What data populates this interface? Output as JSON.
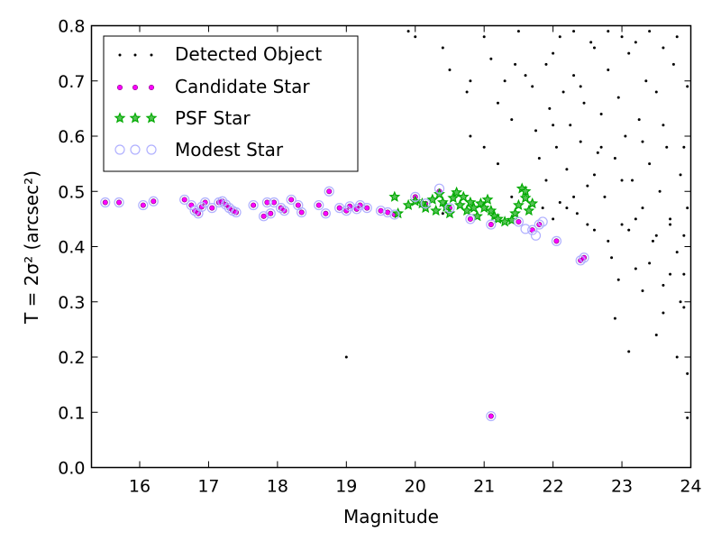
{
  "chart_data": {
    "type": "scatter",
    "xlabel": "Magnitude",
    "ylabel": "T = 2σ² (arcsec²)",
    "xlim": [
      15.3,
      24.0
    ],
    "ylim": [
      0.0,
      0.8
    ],
    "xticks": [
      "16",
      "17",
      "18",
      "19",
      "20",
      "21",
      "22",
      "23",
      "24"
    ],
    "yticks": [
      "0.0",
      "0.1",
      "0.2",
      "0.3",
      "0.4",
      "0.5",
      "0.6",
      "0.7",
      "0.8"
    ],
    "grid": false,
    "legend_position": "top-left",
    "colors": {
      "detected": "#000000",
      "candidate": "#ff00ff",
      "psf": "#00aa00",
      "modest": "#b0b0ff"
    },
    "series": [
      {
        "name": "Detected Object",
        "marker": "dot",
        "points": [
          [
            19.9,
            0.79
          ],
          [
            20.0,
            0.78
          ],
          [
            20.4,
            0.76
          ],
          [
            20.5,
            0.72
          ],
          [
            20.75,
            0.68
          ],
          [
            20.8,
            0.7
          ],
          [
            20.8,
            0.6
          ],
          [
            21.0,
            0.58
          ],
          [
            20.4,
            0.46
          ],
          [
            19.0,
            0.2
          ],
          [
            21.0,
            0.78
          ],
          [
            21.1,
            0.74
          ],
          [
            21.2,
            0.66
          ],
          [
            21.3,
            0.7
          ],
          [
            21.2,
            0.55
          ],
          [
            21.4,
            0.63
          ],
          [
            21.45,
            0.73
          ],
          [
            21.5,
            0.79
          ],
          [
            21.6,
            0.71
          ],
          [
            21.7,
            0.69
          ],
          [
            21.75,
            0.61
          ],
          [
            21.8,
            0.56
          ],
          [
            21.9,
            0.52
          ],
          [
            21.95,
            0.65
          ],
          [
            22.0,
            0.75
          ],
          [
            22.05,
            0.58
          ],
          [
            22.1,
            0.48
          ],
          [
            22.15,
            0.68
          ],
          [
            22.2,
            0.54
          ],
          [
            22.25,
            0.62
          ],
          [
            22.3,
            0.71
          ],
          [
            22.35,
            0.46
          ],
          [
            22.4,
            0.59
          ],
          [
            22.45,
            0.66
          ],
          [
            22.5,
            0.51
          ],
          [
            22.55,
            0.77
          ],
          [
            22.6,
            0.43
          ],
          [
            22.65,
            0.57
          ],
          [
            22.7,
            0.64
          ],
          [
            22.75,
            0.49
          ],
          [
            22.8,
            0.72
          ],
          [
            22.85,
            0.38
          ],
          [
            22.9,
            0.56
          ],
          [
            22.95,
            0.67
          ],
          [
            23.0,
            0.44
          ],
          [
            23.05,
            0.6
          ],
          [
            23.1,
            0.75
          ],
          [
            23.15,
            0.52
          ],
          [
            23.2,
            0.36
          ],
          [
            23.25,
            0.63
          ],
          [
            23.3,
            0.47
          ],
          [
            23.35,
            0.7
          ],
          [
            23.4,
            0.55
          ],
          [
            23.45,
            0.41
          ],
          [
            23.5,
            0.68
          ],
          [
            23.55,
            0.5
          ],
          [
            23.6,
            0.33
          ],
          [
            23.65,
            0.58
          ],
          [
            23.7,
            0.45
          ],
          [
            23.75,
            0.73
          ],
          [
            23.8,
            0.39
          ],
          [
            23.85,
            0.53
          ],
          [
            23.9,
            0.29
          ],
          [
            23.95,
            0.47
          ],
          [
            22.1,
            0.78
          ],
          [
            22.3,
            0.79
          ],
          [
            22.6,
            0.76
          ],
          [
            22.8,
            0.79
          ],
          [
            23.0,
            0.78
          ],
          [
            23.2,
            0.77
          ],
          [
            23.4,
            0.79
          ],
          [
            23.6,
            0.76
          ],
          [
            23.8,
            0.78
          ],
          [
            23.95,
            0.69
          ],
          [
            21.9,
            0.73
          ],
          [
            22.0,
            0.62
          ],
          [
            22.4,
            0.69
          ],
          [
            22.7,
            0.58
          ],
          [
            23.0,
            0.52
          ],
          [
            23.3,
            0.59
          ],
          [
            23.6,
            0.62
          ],
          [
            23.9,
            0.58
          ],
          [
            22.2,
            0.47
          ],
          [
            22.5,
            0.44
          ],
          [
            22.8,
            0.41
          ],
          [
            23.1,
            0.43
          ],
          [
            23.4,
            0.37
          ],
          [
            23.7,
            0.35
          ],
          [
            23.9,
            0.35
          ],
          [
            22.9,
            0.27
          ],
          [
            23.1,
            0.21
          ],
          [
            23.5,
            0.24
          ],
          [
            23.8,
            0.2
          ],
          [
            23.95,
            0.17
          ],
          [
            23.95,
            0.09
          ],
          [
            22.3,
            0.49
          ],
          [
            22.6,
            0.53
          ],
          [
            23.2,
            0.45
          ],
          [
            23.5,
            0.42
          ],
          [
            23.7,
            0.44
          ],
          [
            21.6,
            0.5
          ],
          [
            21.7,
            0.48
          ],
          [
            21.85,
            0.47
          ],
          [
            22.0,
            0.45
          ],
          [
            21.4,
            0.49
          ],
          [
            23.85,
            0.3
          ],
          [
            23.6,
            0.28
          ],
          [
            23.9,
            0.42
          ],
          [
            23.3,
            0.32
          ],
          [
            22.95,
            0.34
          ]
        ]
      },
      {
        "name": "Candidate Star",
        "marker": "circle-small",
        "points": [
          [
            15.5,
            0.48
          ],
          [
            15.7,
            0.48
          ],
          [
            16.05,
            0.475
          ],
          [
            16.2,
            0.482
          ],
          [
            16.65,
            0.485
          ],
          [
            16.75,
            0.475
          ],
          [
            16.8,
            0.465
          ],
          [
            16.85,
            0.46
          ],
          [
            16.9,
            0.472
          ],
          [
            16.95,
            0.48
          ],
          [
            17.05,
            0.47
          ],
          [
            17.15,
            0.48
          ],
          [
            17.2,
            0.482
          ],
          [
            17.25,
            0.476
          ],
          [
            17.3,
            0.47
          ],
          [
            17.35,
            0.465
          ],
          [
            17.4,
            0.462
          ],
          [
            17.65,
            0.475
          ],
          [
            17.8,
            0.455
          ],
          [
            17.85,
            0.48
          ],
          [
            17.9,
            0.46
          ],
          [
            17.95,
            0.48
          ],
          [
            18.05,
            0.47
          ],
          [
            18.1,
            0.465
          ],
          [
            18.2,
            0.485
          ],
          [
            18.3,
            0.475
          ],
          [
            18.35,
            0.462
          ],
          [
            18.6,
            0.475
          ],
          [
            18.7,
            0.46
          ],
          [
            18.75,
            0.5
          ],
          [
            18.9,
            0.47
          ],
          [
            19.0,
            0.465
          ],
          [
            19.05,
            0.473
          ],
          [
            19.15,
            0.468
          ],
          [
            19.2,
            0.475
          ],
          [
            19.3,
            0.47
          ],
          [
            19.5,
            0.465
          ],
          [
            19.6,
            0.462
          ],
          [
            19.7,
            0.458
          ],
          [
            20.0,
            0.49
          ],
          [
            20.35,
            0.5
          ],
          [
            20.5,
            0.47
          ],
          [
            20.8,
            0.45
          ],
          [
            21.1,
            0.44
          ],
          [
            21.5,
            0.445
          ],
          [
            21.7,
            0.43
          ],
          [
            22.05,
            0.41
          ],
          [
            22.4,
            0.375
          ],
          [
            22.45,
            0.38
          ],
          [
            21.1,
            0.093
          ],
          [
            21.8,
            0.44
          ],
          [
            20.15,
            0.478
          ]
        ]
      },
      {
        "name": "PSF Star",
        "marker": "star",
        "points": [
          [
            19.7,
            0.49
          ],
          [
            19.75,
            0.46
          ],
          [
            19.9,
            0.475
          ],
          [
            20.0,
            0.482
          ],
          [
            20.1,
            0.478
          ],
          [
            20.15,
            0.47
          ],
          [
            20.25,
            0.485
          ],
          [
            20.3,
            0.465
          ],
          [
            20.35,
            0.495
          ],
          [
            20.4,
            0.48
          ],
          [
            20.45,
            0.472
          ],
          [
            20.5,
            0.46
          ],
          [
            20.55,
            0.488
          ],
          [
            20.6,
            0.498
          ],
          [
            20.65,
            0.475
          ],
          [
            20.7,
            0.49
          ],
          [
            20.75,
            0.465
          ],
          [
            20.8,
            0.48
          ],
          [
            20.85,
            0.47
          ],
          [
            20.9,
            0.455
          ],
          [
            20.95,
            0.478
          ],
          [
            21.0,
            0.47
          ],
          [
            21.05,
            0.485
          ],
          [
            21.1,
            0.465
          ],
          [
            21.15,
            0.455
          ],
          [
            21.2,
            0.45
          ],
          [
            21.3,
            0.445
          ],
          [
            21.4,
            0.448
          ],
          [
            21.5,
            0.475
          ],
          [
            21.55,
            0.505
          ],
          [
            21.6,
            0.5
          ],
          [
            21.65,
            0.465
          ],
          [
            21.7,
            0.478
          ],
          [
            21.6,
            0.488
          ],
          [
            21.45,
            0.46
          ]
        ]
      },
      {
        "name": "Modest Star",
        "marker": "circle-open",
        "points": [
          [
            15.5,
            0.48
          ],
          [
            15.7,
            0.48
          ],
          [
            16.05,
            0.475
          ],
          [
            16.2,
            0.482
          ],
          [
            16.65,
            0.485
          ],
          [
            16.75,
            0.475
          ],
          [
            16.8,
            0.465
          ],
          [
            16.85,
            0.46
          ],
          [
            16.9,
            0.472
          ],
          [
            16.95,
            0.48
          ],
          [
            17.05,
            0.47
          ],
          [
            17.15,
            0.48
          ],
          [
            17.2,
            0.482
          ],
          [
            17.25,
            0.476
          ],
          [
            17.3,
            0.47
          ],
          [
            17.35,
            0.465
          ],
          [
            17.4,
            0.462
          ],
          [
            17.65,
            0.475
          ],
          [
            17.8,
            0.455
          ],
          [
            17.85,
            0.48
          ],
          [
            17.9,
            0.46
          ],
          [
            17.95,
            0.48
          ],
          [
            18.05,
            0.47
          ],
          [
            18.1,
            0.465
          ],
          [
            18.2,
            0.485
          ],
          [
            18.3,
            0.475
          ],
          [
            18.35,
            0.462
          ],
          [
            18.6,
            0.475
          ],
          [
            18.7,
            0.46
          ],
          [
            18.75,
            0.5
          ],
          [
            18.9,
            0.47
          ],
          [
            19.0,
            0.465
          ],
          [
            19.05,
            0.473
          ],
          [
            19.15,
            0.468
          ],
          [
            19.2,
            0.475
          ],
          [
            19.3,
            0.47
          ],
          [
            19.5,
            0.465
          ],
          [
            19.6,
            0.462
          ],
          [
            19.7,
            0.458
          ],
          [
            20.0,
            0.49
          ],
          [
            20.35,
            0.505
          ],
          [
            20.5,
            0.47
          ],
          [
            20.8,
            0.45
          ],
          [
            21.1,
            0.44
          ],
          [
            21.5,
            0.445
          ],
          [
            21.7,
            0.43
          ],
          [
            21.75,
            0.42
          ],
          [
            22.05,
            0.41
          ],
          [
            22.4,
            0.375
          ],
          [
            22.45,
            0.38
          ],
          [
            21.1,
            0.093
          ],
          [
            21.8,
            0.44
          ],
          [
            21.85,
            0.445
          ],
          [
            20.15,
            0.478
          ],
          [
            21.6,
            0.432
          ]
        ]
      }
    ]
  }
}
